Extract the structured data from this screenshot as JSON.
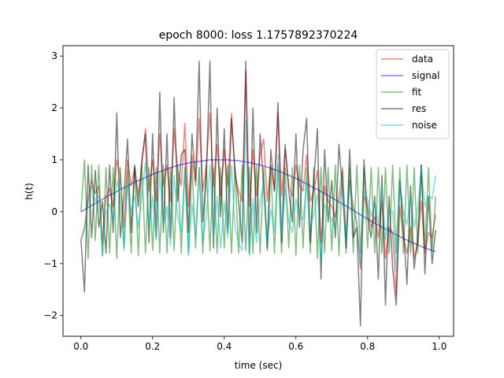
{
  "chart_data": {
    "type": "line",
    "title": "epoch 8000: loss 1.1757892370224",
    "xlabel": "time (sec)",
    "ylabel": "h(t)",
    "xlim": [
      -0.05,
      1.04
    ],
    "ylim": [
      -2.4,
      3.2
    ],
    "xticks": [
      0.0,
      0.2,
      0.4,
      0.6,
      0.8,
      1.0
    ],
    "xtick_labels": [
      "0.0",
      "0.2",
      "0.4",
      "0.6",
      "0.8",
      "1.0"
    ],
    "yticks": [
      -2,
      -1,
      0,
      1,
      2,
      3
    ],
    "ytick_labels": [
      "−2",
      "−1",
      "0",
      "1",
      "2",
      "3"
    ],
    "grid": false,
    "legend_position": "top-right",
    "x": [
      0.0,
      0.01,
      0.02,
      0.03,
      0.04,
      0.05,
      0.06,
      0.07,
      0.08,
      0.09,
      0.1,
      0.11,
      0.12,
      0.13,
      0.14,
      0.15,
      0.16,
      0.17,
      0.18,
      0.19,
      0.2,
      0.21,
      0.22,
      0.23,
      0.24,
      0.25,
      0.26,
      0.27,
      0.28,
      0.29,
      0.3,
      0.31,
      0.32,
      0.33,
      0.34,
      0.35,
      0.36,
      0.37,
      0.38,
      0.39,
      0.4,
      0.41,
      0.42,
      0.43,
      0.44,
      0.45,
      0.46,
      0.47,
      0.48,
      0.49,
      0.5,
      0.51,
      0.52,
      0.53,
      0.54,
      0.55,
      0.56,
      0.57,
      0.58,
      0.59,
      0.6,
      0.61,
      0.62,
      0.63,
      0.64,
      0.65,
      0.66,
      0.67,
      0.68,
      0.69,
      0.7,
      0.71,
      0.72,
      0.73,
      0.74,
      0.75,
      0.76,
      0.77,
      0.78,
      0.79,
      0.8,
      0.81,
      0.82,
      0.83,
      0.84,
      0.85,
      0.86,
      0.87,
      0.88,
      0.89,
      0.9,
      0.91,
      0.92,
      0.93,
      0.94,
      0.95,
      0.96,
      0.97,
      0.98,
      0.99
    ],
    "series": [
      {
        "name": "data",
        "color": "#ff0000",
        "opacity": 0.5,
        "values": [
          -0.55,
          -0.3,
          0.25,
          0.6,
          0.35,
          0.5,
          -0.6,
          0.3,
          0.45,
          0.1,
          1.0,
          0.7,
          -0.3,
          1.0,
          0.5,
          0.85,
          0.3,
          0.9,
          1.6,
          0.4,
          1.0,
          0.2,
          1.5,
          0.5,
          0.9,
          0.2,
          1.6,
          0.8,
          0.5,
          1.7,
          0.1,
          1.1,
          0.5,
          1.8,
          0.4,
          0.9,
          1.9,
          0.5,
          1.3,
          0.3,
          1.2,
          0.5,
          1.9,
          0.7,
          0.4,
          0.2,
          2.7,
          0.1,
          1.2,
          0.3,
          1.1,
          1.4,
          0.2,
          0.9,
          0.4,
          1.9,
          0.3,
          1.2,
          0.5,
          0.3,
          0.9,
          0.5,
          0.4,
          1.1,
          0.2,
          0.4,
          0.8,
          -0.6,
          0.5,
          0.2,
          0.1,
          -0.1,
          0.3,
          0.8,
          -0.5,
          0.6,
          0.1,
          -0.2,
          -1.1,
          0.3,
          0.1,
          -0.3,
          -0.1,
          -0.5,
          0.2,
          -0.9,
          -0.3,
          -0.4,
          -1.6,
          0.1,
          -0.5,
          -0.8,
          -0.3,
          -0.9,
          -0.6,
          0.2,
          -0.8,
          -0.4,
          -0.5,
          -0.05
        ]
      },
      {
        "name": "signal",
        "color": "#0000ff",
        "opacity": 0.5,
        "values": [
          0.0,
          0.04,
          0.08,
          0.12,
          0.16,
          0.2,
          0.24,
          0.28,
          0.32,
          0.35,
          0.39,
          0.43,
          0.46,
          0.5,
          0.53,
          0.57,
          0.6,
          0.63,
          0.66,
          0.69,
          0.72,
          0.75,
          0.77,
          0.8,
          0.82,
          0.85,
          0.87,
          0.89,
          0.91,
          0.92,
          0.94,
          0.95,
          0.96,
          0.97,
          0.98,
          0.99,
          1.0,
          1.0,
          1.0,
          1.0,
          1.0,
          1.0,
          0.99,
          0.99,
          0.98,
          0.97,
          0.96,
          0.95,
          0.93,
          0.92,
          0.9,
          0.88,
          0.86,
          0.84,
          0.81,
          0.79,
          0.76,
          0.73,
          0.7,
          0.67,
          0.64,
          0.61,
          0.57,
          0.54,
          0.5,
          0.46,
          0.43,
          0.39,
          0.35,
          0.31,
          0.27,
          0.23,
          0.19,
          0.15,
          0.11,
          0.07,
          0.03,
          -0.02,
          -0.06,
          -0.1,
          -0.14,
          -0.18,
          -0.22,
          -0.26,
          -0.3,
          -0.33,
          -0.37,
          -0.41,
          -0.44,
          -0.48,
          -0.51,
          -0.55,
          -0.58,
          -0.61,
          -0.64,
          -0.67,
          -0.7,
          -0.72,
          -0.75,
          -0.77
        ]
      },
      {
        "name": "fit",
        "color": "#008000",
        "opacity": 0.5,
        "values": [
          0.0,
          1.0,
          -0.9,
          0.9,
          -0.55,
          0.9,
          -0.85,
          0.85,
          -0.8,
          0.85,
          -0.9,
          0.85,
          -0.7,
          0.8,
          -0.8,
          0.85,
          -0.85,
          0.9,
          -0.8,
          0.85,
          -0.75,
          0.85,
          -0.8,
          0.9,
          -0.8,
          0.85,
          -0.75,
          0.9,
          -0.8,
          0.85,
          -0.8,
          0.9,
          -0.7,
          0.85,
          -0.8,
          0.9,
          -0.75,
          0.85,
          -0.8,
          0.85,
          -0.7,
          0.9,
          -0.8,
          0.85,
          -0.8,
          0.9,
          -0.75,
          0.85,
          -0.8,
          0.9,
          -0.8,
          0.85,
          -0.75,
          0.85,
          -0.8,
          0.9,
          -0.8,
          0.85,
          -0.7,
          0.85,
          -0.85,
          0.9,
          -0.7,
          0.85,
          -0.8,
          0.85,
          -0.9,
          0.85,
          -0.8,
          0.85,
          -0.75,
          0.9,
          -0.85,
          0.85,
          -0.8,
          0.85,
          -0.8,
          0.9,
          -0.8,
          0.85,
          -0.7,
          0.85,
          -0.8,
          0.85,
          -0.8,
          0.85,
          -0.8,
          0.9,
          -0.8,
          0.85,
          -0.8,
          0.9,
          -0.8,
          0.85,
          -0.8,
          0.9,
          -0.7,
          0.85,
          -0.75,
          0.3
        ]
      },
      {
        "name": "res",
        "color": "#000000",
        "opacity": 0.5,
        "values": [
          -0.55,
          -1.55,
          0.9,
          -0.5,
          0.8,
          -0.3,
          0.2,
          -0.8,
          0.9,
          -0.4,
          1.9,
          -0.5,
          0.3,
          1.4,
          -0.4,
          0.9,
          0.1,
          1.0,
          1.5,
          -0.6,
          1.5,
          -0.5,
          2.3,
          -0.4,
          1.5,
          -0.5,
          2.2,
          0.2,
          1.1,
          1.2,
          -0.4,
          1.5,
          0.6,
          2.9,
          -0.2,
          0.7,
          2.9,
          -0.7,
          2.0,
          -0.1,
          1.6,
          -0.4,
          1.8,
          0.8,
          0.2,
          -0.6,
          2.9,
          -0.8,
          2.0,
          -0.4,
          1.5,
          0.5,
          -0.7,
          1.2,
          0.4,
          2.1,
          -0.6,
          1.3,
          0.4,
          -0.2,
          1.5,
          -0.3,
          1.2,
          1.8,
          -0.6,
          0.6,
          1.6,
          -1.3,
          1.2,
          -0.2,
          0.6,
          -0.5,
          1.3,
          0.4,
          -0.7,
          1.2,
          -0.5,
          -0.3,
          -2.2,
          1.0,
          -0.1,
          -0.5,
          0.3,
          -1.3,
          0.7,
          -1.8,
          0.3,
          -1.1,
          -1.8,
          0.6,
          -0.3,
          -1.4,
          0.5,
          -1.1,
          -0.5,
          0.9,
          -1.2,
          0.3,
          -1.0,
          -0.35
        ]
      },
      {
        "name": "noise",
        "color": "#00bfbf",
        "opacity": 0.5,
        "values": [
          -0.55,
          -0.35,
          0.15,
          0.5,
          0.2,
          0.3,
          -0.85,
          0.0,
          0.15,
          -0.2,
          0.6,
          0.3,
          -0.75,
          0.5,
          0.0,
          0.3,
          -0.3,
          0.3,
          0.95,
          -0.3,
          0.3,
          -0.55,
          0.75,
          -0.3,
          0.1,
          -0.65,
          0.7,
          -0.1,
          -0.4,
          0.8,
          -0.85,
          0.15,
          -0.45,
          0.85,
          -0.6,
          -0.1,
          0.9,
          -0.5,
          0.3,
          -0.7,
          0.2,
          -0.5,
          0.9,
          -0.3,
          -0.6,
          -0.75,
          1.75,
          -0.85,
          0.25,
          -0.6,
          0.2,
          0.55,
          -0.65,
          0.05,
          -0.4,
          1.1,
          -0.45,
          0.45,
          -0.2,
          -0.4,
          0.25,
          -0.1,
          -0.15,
          0.55,
          -0.3,
          -0.05,
          0.35,
          -1.0,
          0.15,
          -0.1,
          -0.15,
          -0.35,
          0.1,
          0.65,
          -0.6,
          0.55,
          0.05,
          -0.2,
          -1.05,
          0.4,
          0.25,
          -0.1,
          0.15,
          -0.25,
          0.5,
          -0.55,
          0.05,
          0.0,
          -1.15,
          0.6,
          0.0,
          -0.25,
          0.3,
          -0.3,
          0.05,
          0.85,
          0.1,
          0.3,
          0.25,
          0.7
        ]
      }
    ]
  }
}
